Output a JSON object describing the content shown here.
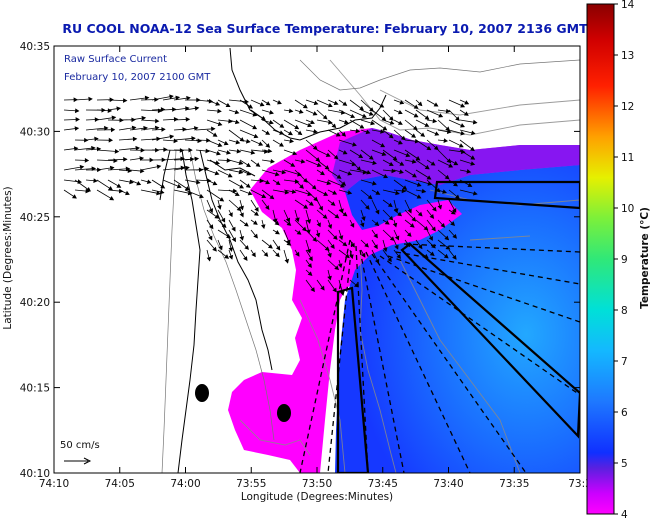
{
  "chart_data": {
    "type": "heatmap",
    "title": "RU COOL  NOAA-12  Sea Surface Temperature:  February 10, 2007 2136 GMT",
    "xlabel": "Longitude (Degrees:Minutes)",
    "ylabel": "Latitude (Degrees:Minutes)",
    "x_ticks": [
      "74:10",
      "74:05",
      "74:00",
      "73:55",
      "73:50",
      "73:45",
      "73:40",
      "73:35",
      "73:3"
    ],
    "y_ticks": [
      "40:35",
      "40:30",
      "40:25",
      "40:20",
      "40:15",
      "40:10"
    ],
    "xlim_minutes_west": [
      -70,
      -30
    ],
    "ylim_minutes_north": [
      10,
      35
    ],
    "colorbar": {
      "label": "Temperature (°C)",
      "min": 4,
      "max": 14,
      "ticks": [
        "14",
        "13",
        "12",
        "11",
        "10",
        "9",
        "8",
        "7",
        "6",
        "5",
        "4"
      ]
    },
    "legend_lines": [
      "Raw Surface Current",
      "February 10, 2007 2100 GMT"
    ],
    "scale_label": "50 cm/s",
    "grid": false
  },
  "colors": {
    "title": "#0a1ab0",
    "land": "#ffffff",
    "warm_water": "#ff00ff",
    "cold_water": "#1a55ff",
    "arrow": "#000000"
  }
}
